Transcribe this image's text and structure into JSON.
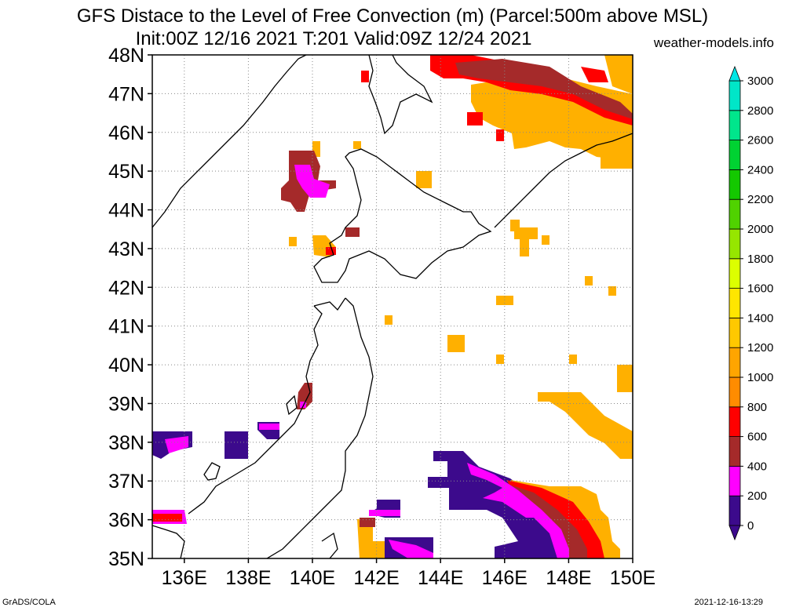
{
  "header": {
    "title_line1": "GFS Distace to the Level of Free Convection (m) (Parcel:500m above MSL)",
    "title_line2": "Init:00Z 12/16 2021 T:201 Valid:09Z 12/24 2021",
    "site": "weather-models.info"
  },
  "map": {
    "lat_labels": [
      "48N",
      "47N",
      "46N",
      "45N",
      "44N",
      "43N",
      "42N",
      "41N",
      "40N",
      "39N",
      "38N",
      "37N",
      "36N",
      "35N"
    ],
    "lon_labels": [
      "136E",
      "138E",
      "140E",
      "142E",
      "144E",
      "146E",
      "148E",
      "150E"
    ]
  },
  "colorbar": {
    "levels": [
      "0",
      "200",
      "400",
      "600",
      "800",
      "1000",
      "1200",
      "1400",
      "1600",
      "1800",
      "2000",
      "2200",
      "2400",
      "2600",
      "2800",
      "3000"
    ],
    "colors": [
      "#3c0a8c",
      "#ff00ff",
      "#a52a2a",
      "#ff0000",
      "#ff8c00",
      "#ffa500",
      "#ffc800",
      "#ffe600",
      "#dcff00",
      "#96e600",
      "#50d200",
      "#14c800",
      "#00d232",
      "#00e68c",
      "#00e6c8",
      "#00f0f0"
    ],
    "top_arrow_color": "#00e6e6",
    "bottom_arrow_color": "#3c0a8c"
  },
  "footer": {
    "left": "GrADS/COLA",
    "right": "2021-12-16-13:29"
  }
}
